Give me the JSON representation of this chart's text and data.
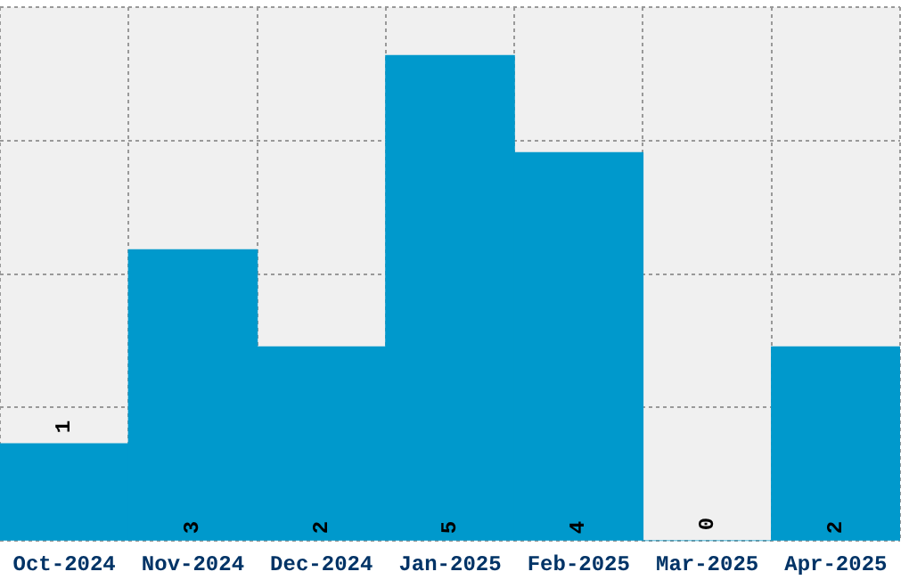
{
  "chart_data": {
    "type": "bar",
    "categories": [
      "Oct-2024",
      "Nov-2024",
      "Dec-2024",
      "Jan-2025",
      "Feb-2025",
      "Mar-2025",
      "Apr-2025"
    ],
    "values": [
      1,
      3,
      2,
      5,
      4,
      0,
      2
    ],
    "color": "#0099cc",
    "ylim": [
      0,
      5.5
    ],
    "yticks": [
      {
        "value": 0,
        "label": null
      },
      {
        "value": 1.375,
        "label": null
      },
      {
        "value": 2.75,
        "label": null
      },
      {
        "value": 4.125,
        "label": null
      },
      {
        "value": 5.5,
        "label": null
      }
    ],
    "tick_labels": "x",
    "grid": true,
    "legend": false,
    "data_labels": true
  }
}
